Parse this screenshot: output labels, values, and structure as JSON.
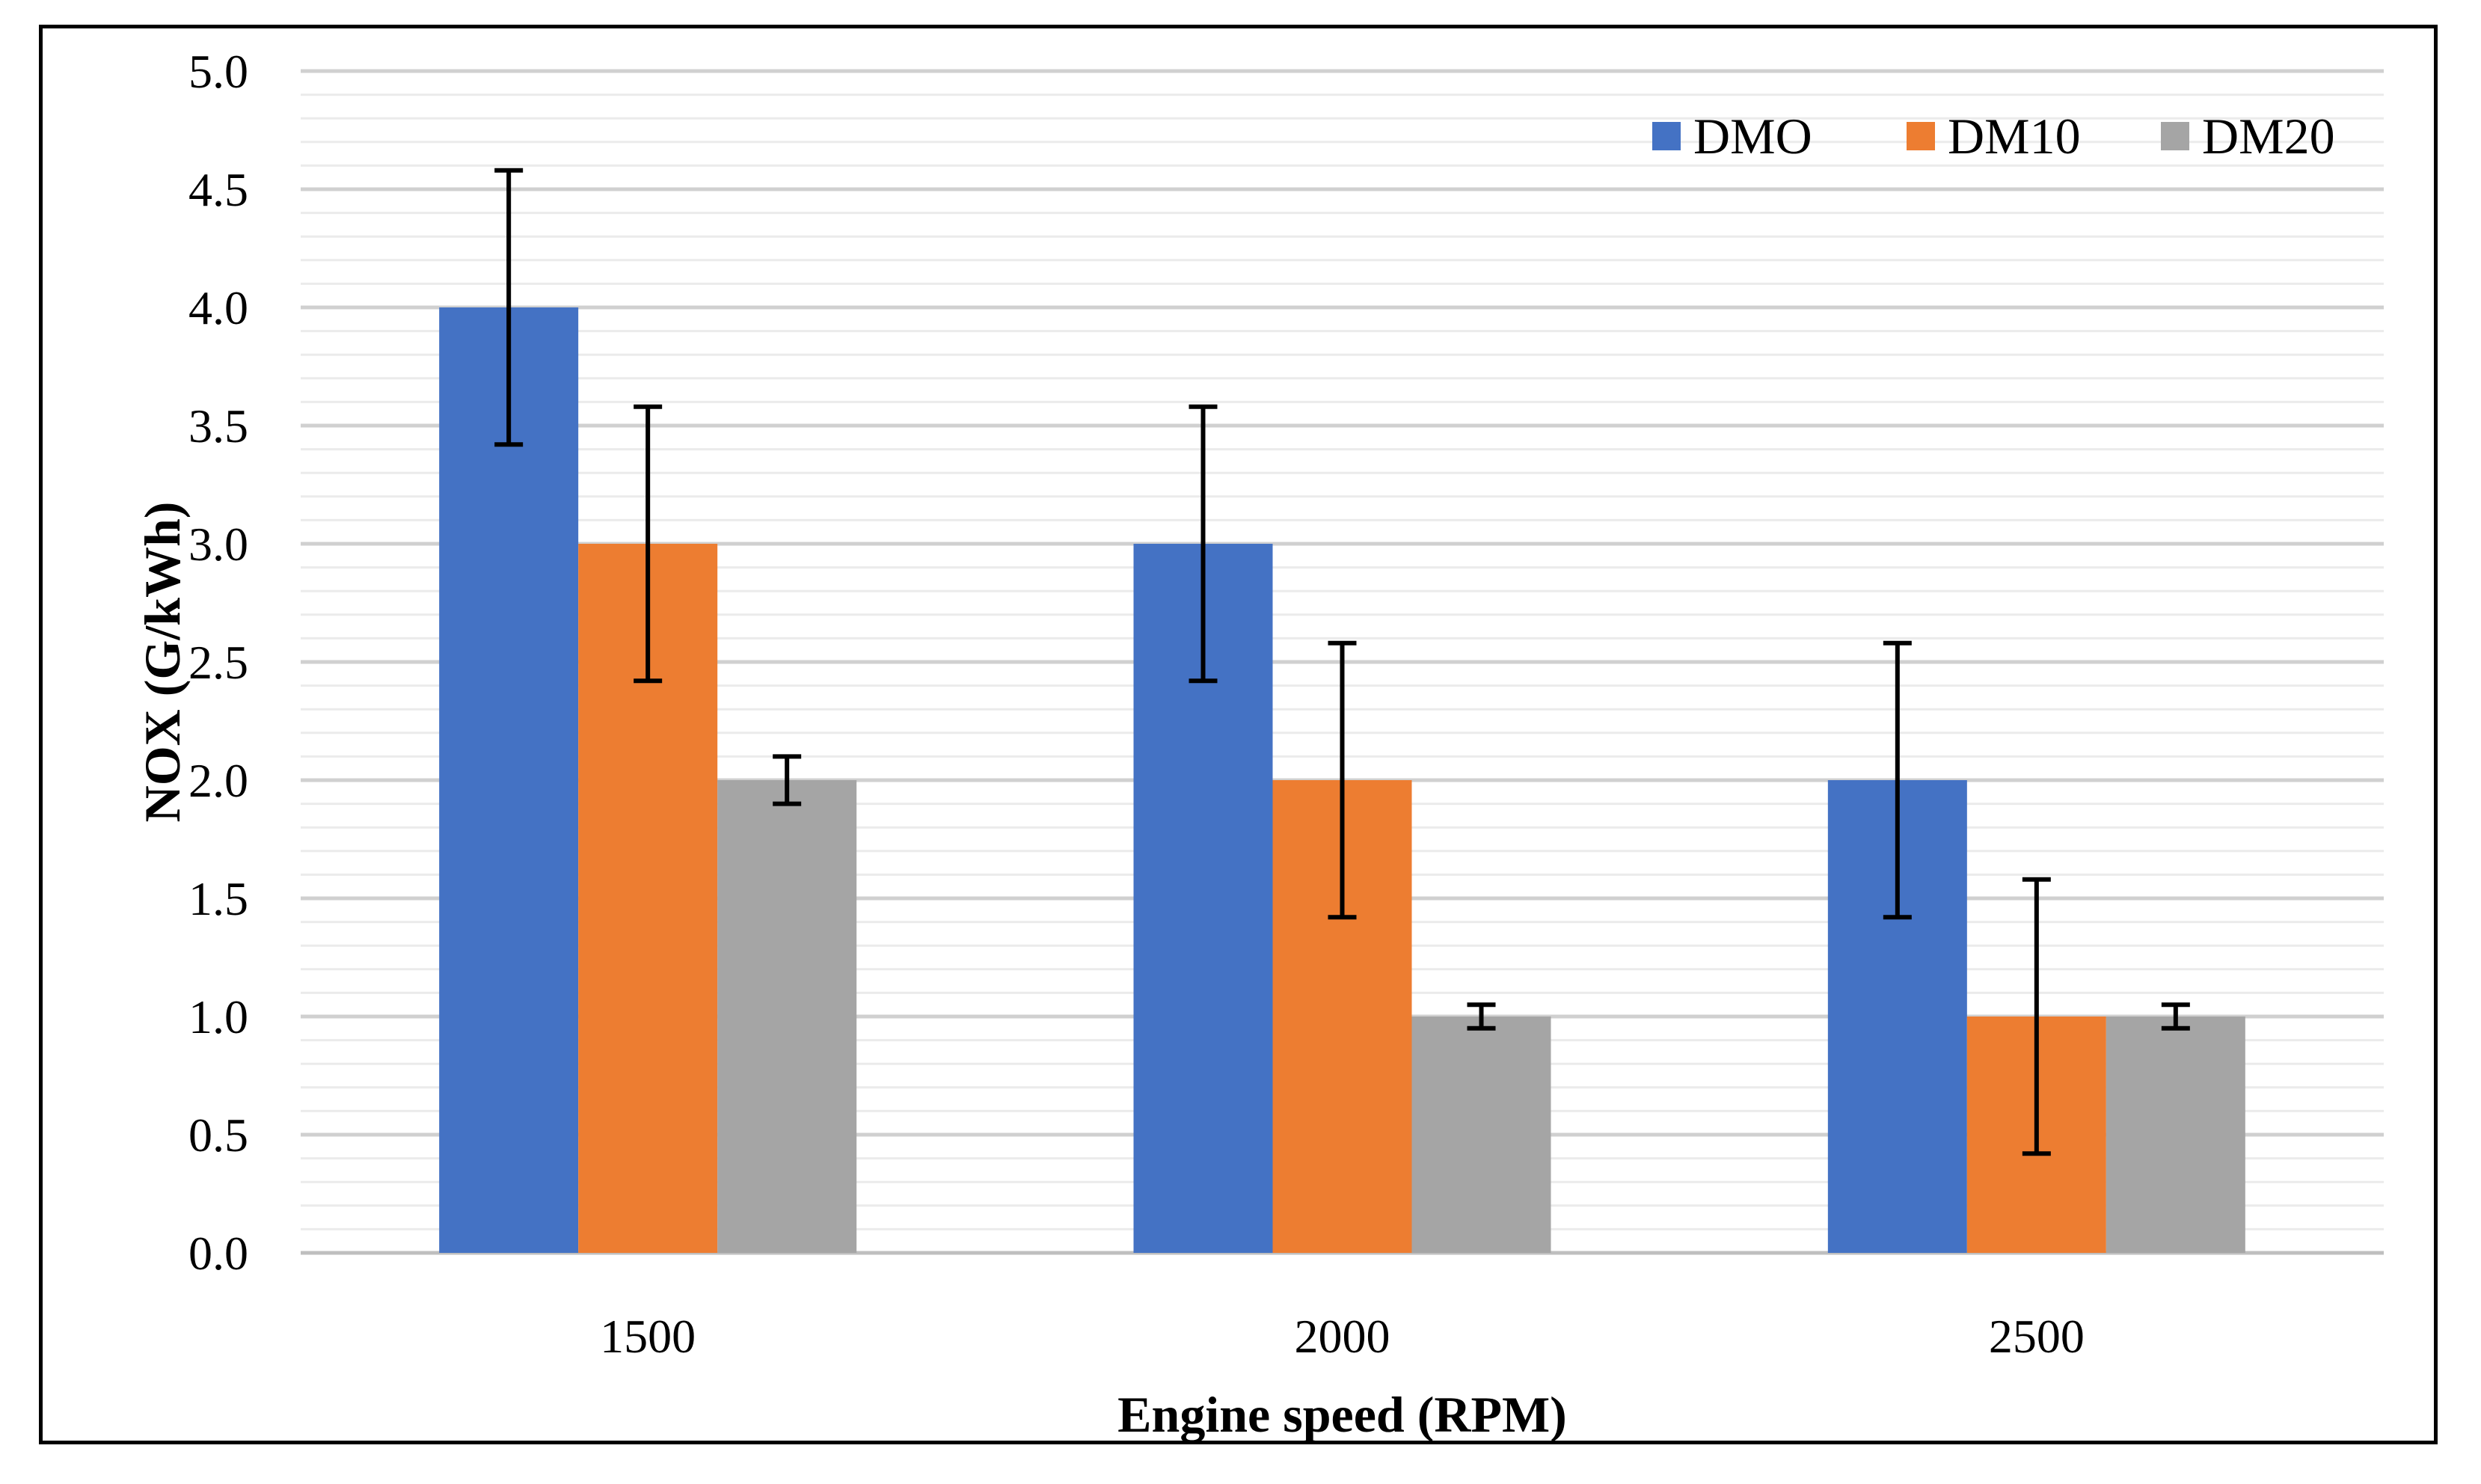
{
  "chart_data": {
    "type": "bar",
    "title": "",
    "xlabel": "Engine speed (RPM)",
    "ylabel": "NOX (G/kWh)",
    "categories": [
      "1500",
      "2000",
      "2500"
    ],
    "ylim": [
      0,
      5
    ],
    "yticks": [
      "0.0",
      "0.5",
      "1.0",
      "1.5",
      "2.0",
      "2.5",
      "3.0",
      "3.5",
      "4.0",
      "4.5",
      "5.0"
    ],
    "grid": true,
    "legend_position": "top-right",
    "series": [
      {
        "name": "DMO",
        "color": "#4472C4",
        "values": [
          4.0,
          3.0,
          2.0
        ],
        "errors": [
          0.58,
          0.58,
          0.58
        ]
      },
      {
        "name": "DM10",
        "color": "#ED7D31",
        "values": [
          3.0,
          2.0,
          1.0
        ],
        "errors": [
          0.58,
          0.58,
          0.58
        ]
      },
      {
        "name": "DM20",
        "color": "#A5A5A5",
        "values": [
          2.0,
          1.0,
          1.0
        ],
        "errors": [
          0.1,
          0.05,
          0.05
        ]
      }
    ]
  }
}
